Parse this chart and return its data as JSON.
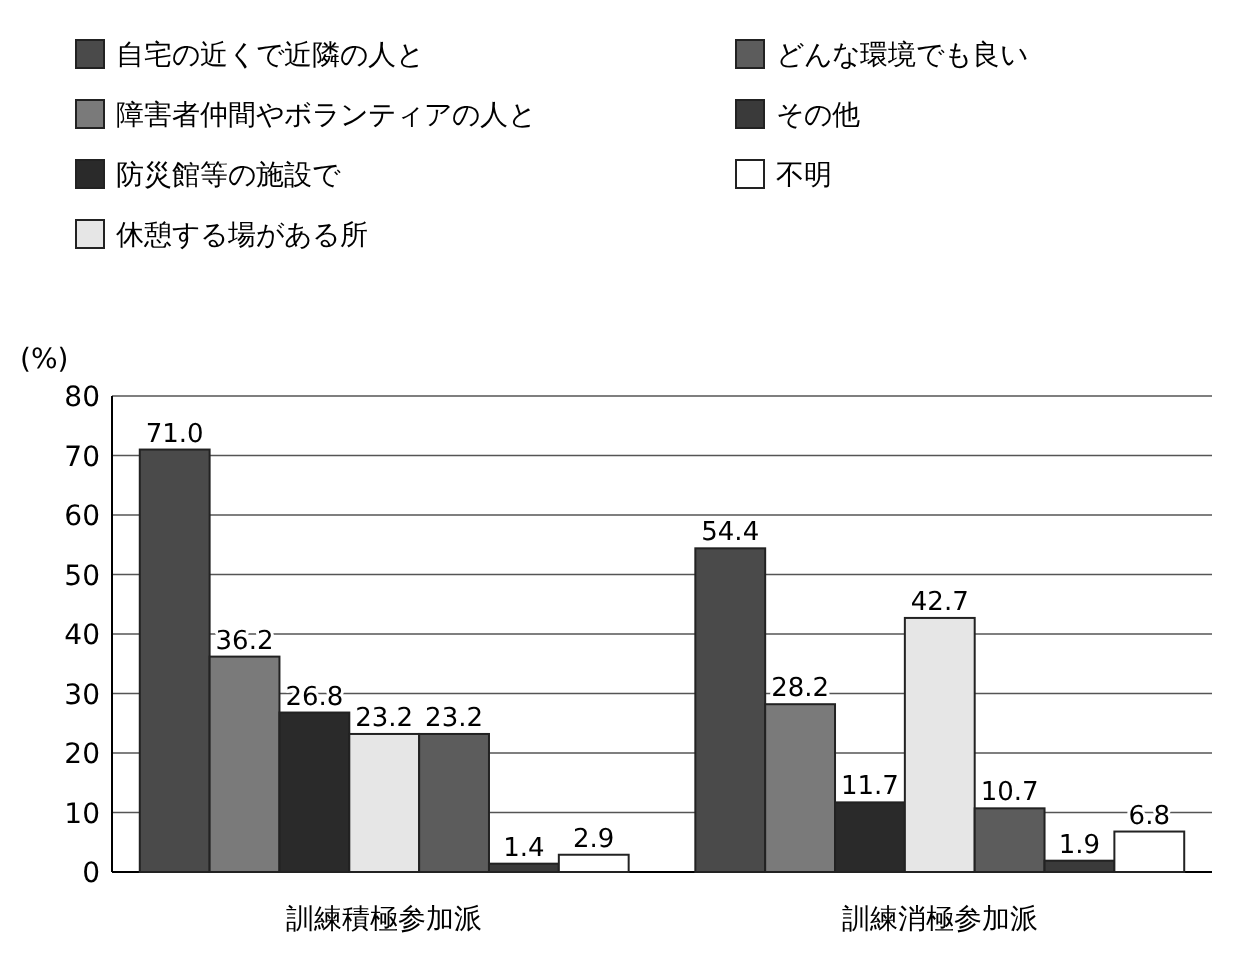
{
  "chart_data": {
    "type": "bar",
    "ylabel": "(%)",
    "categories": [
      "訓練積極参加派",
      "訓練消極参加派"
    ],
    "ylim": [
      0,
      80
    ],
    "yticks": [
      0,
      10,
      20,
      30,
      40,
      50,
      60,
      70,
      80
    ],
    "grid": "y",
    "legend": "top left",
    "series": [
      {
        "name": "自宅の近くで近隣の人と",
        "color": "#4a4a4a",
        "values": [
          71.0,
          54.4
        ],
        "value_labels": [
          "71.0",
          "54.4"
        ]
      },
      {
        "name": "障害者仲間やボランティアの人と",
        "color": "#7a7a7a",
        "values": [
          36.2,
          28.2
        ],
        "value_labels": [
          "36.2",
          "28.2"
        ]
      },
      {
        "name": "防災館等の施設で",
        "color": "#2a2a2a",
        "values": [
          26.8,
          11.7
        ],
        "value_labels": [
          "26.8",
          "11.7"
        ]
      },
      {
        "name": "休憩する場がある所",
        "color": "#e6e6e6",
        "values": [
          23.2,
          42.7
        ],
        "value_labels": [
          "23.2",
          "42.7"
        ]
      },
      {
        "name": "どんな環境でも良い",
        "color": "#5c5c5c",
        "values": [
          23.2,
          10.7
        ],
        "value_labels": [
          "23.2",
          "10.7"
        ]
      },
      {
        "name": "その他",
        "color": "#3a3a3a",
        "values": [
          1.4,
          1.9
        ],
        "value_labels": [
          "1.4",
          "1.9"
        ]
      },
      {
        "name": "不明",
        "color": "#ffffff",
        "values": [
          2.9,
          6.8
        ],
        "value_labels": [
          "2.9",
          "6.8"
        ]
      }
    ]
  }
}
